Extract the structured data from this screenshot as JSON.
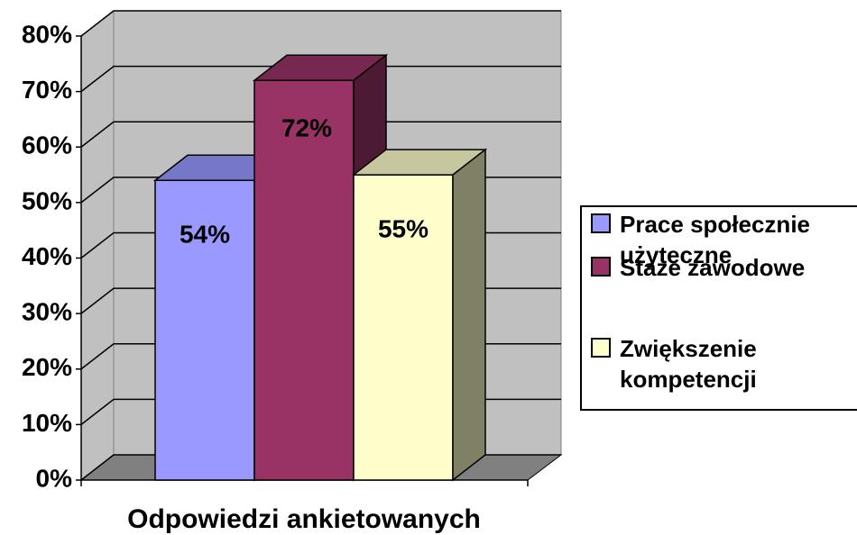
{
  "chart_data": {
    "type": "bar3d",
    "x_label": "Odpowiedzi ankietowanych",
    "categories": [
      "Odpowiedzi ankietowanych"
    ],
    "series": [
      {
        "name": "Prace społecznie użyteczne",
        "color": "#9999ff",
        "values": [
          54
        ],
        "value_labels": [
          "54%"
        ]
      },
      {
        "name": "Staże zawodowe",
        "color": "#993366",
        "values": [
          72
        ],
        "value_labels": [
          "72%"
        ]
      },
      {
        "name": "Zwiększenie kompetencji",
        "color": "#ffffcc",
        "values": [
          55
        ],
        "value_labels": [
          "55%"
        ]
      }
    ],
    "ylim": [
      0,
      80
    ],
    "yticks": [
      {
        "value": 0,
        "label": "0%"
      },
      {
        "value": 10,
        "label": "10%"
      },
      {
        "value": 20,
        "label": "20%"
      },
      {
        "value": 30,
        "label": "30%"
      },
      {
        "value": 40,
        "label": "40%"
      },
      {
        "value": 50,
        "label": "50%"
      },
      {
        "value": 60,
        "label": "60%"
      },
      {
        "value": 70,
        "label": "70%"
      },
      {
        "value": 80,
        "label": "80%"
      }
    ],
    "grid": true,
    "legend": "right"
  }
}
